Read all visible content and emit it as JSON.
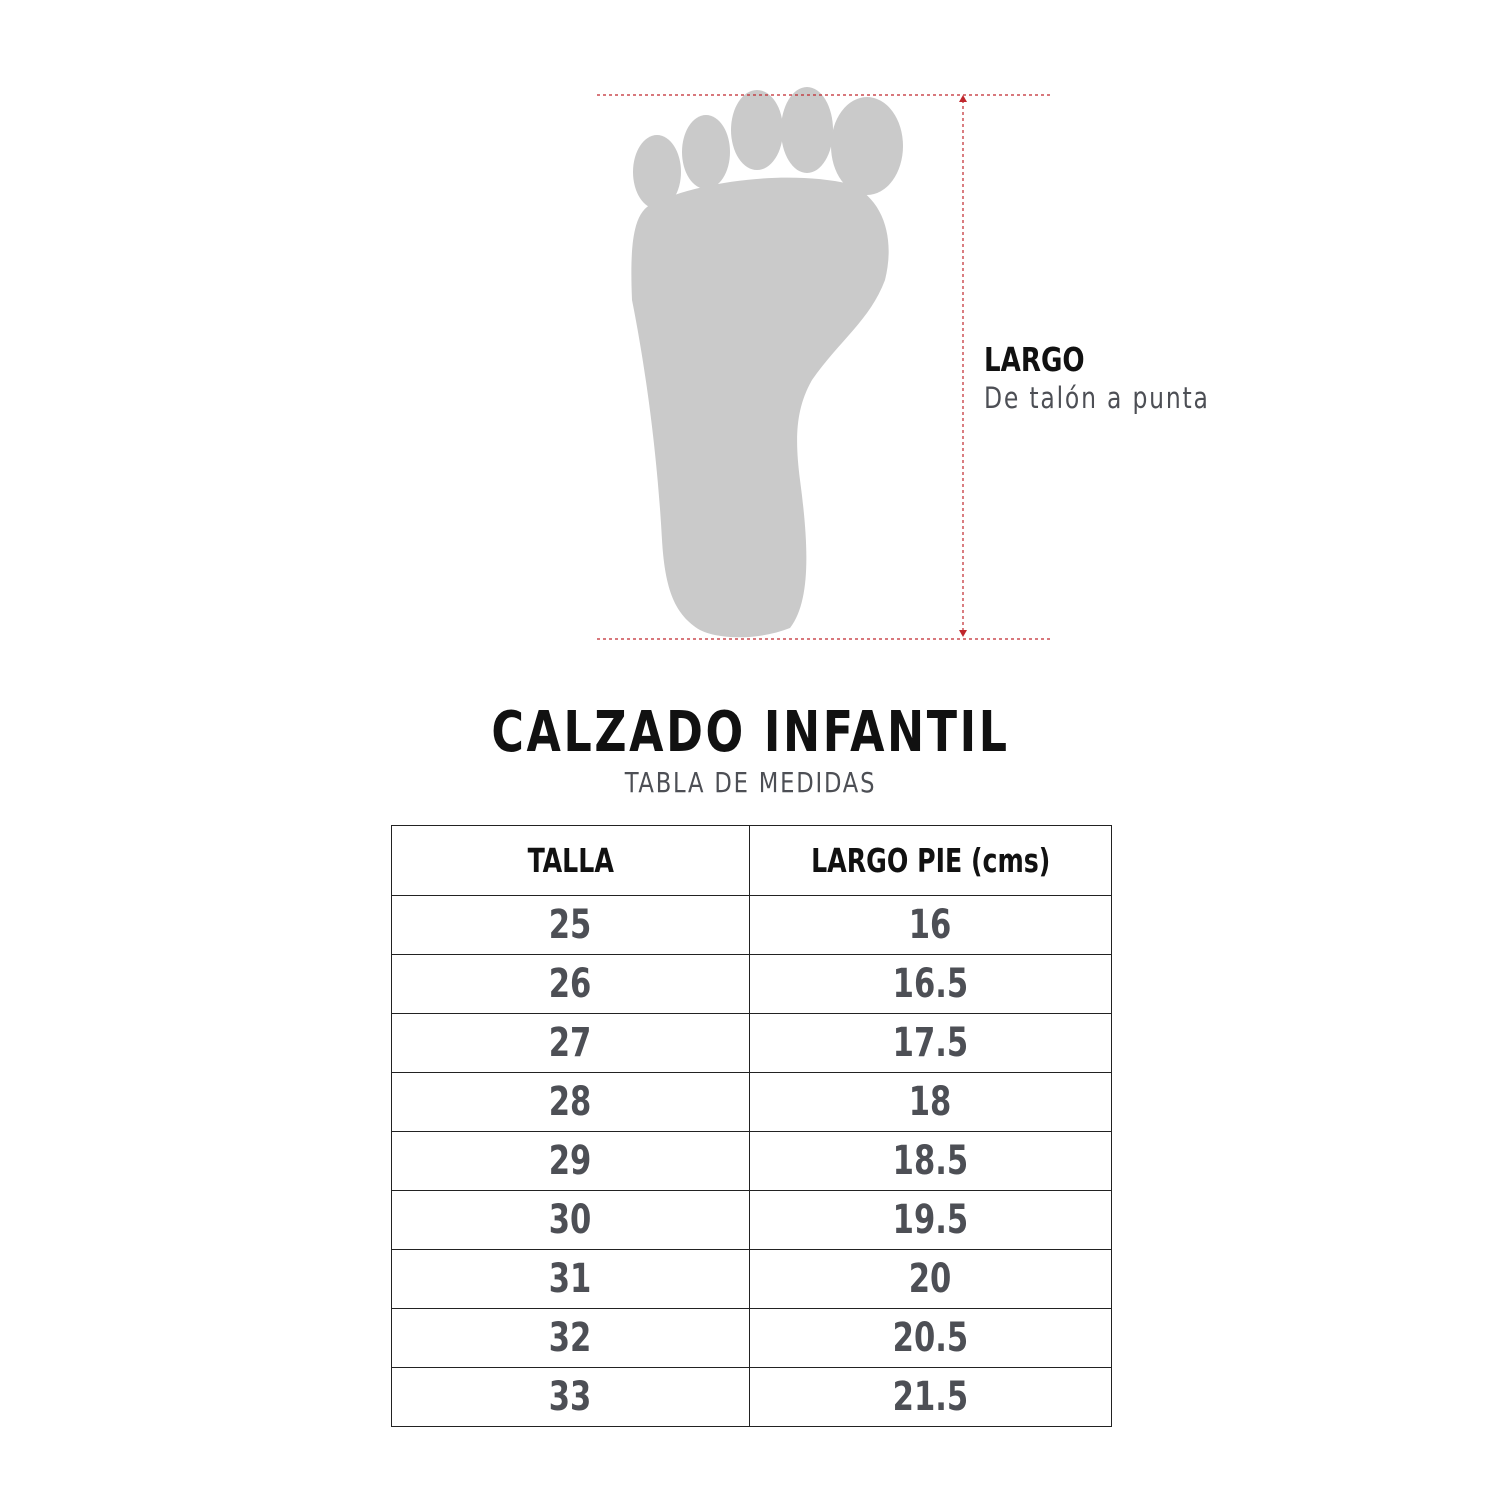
{
  "diagram": {
    "measure_label": "LARGO",
    "measure_description": "De talón a punta",
    "colors": {
      "foot": "#cacaca",
      "measure_line": "#c0272d"
    }
  },
  "header": {
    "title": "CALZADO INFANTIL",
    "subtitle": "TABLA DE MEDIDAS"
  },
  "table": {
    "columns": [
      "TALLA",
      "LARGO PIE (cms)"
    ],
    "rows": [
      [
        "25",
        "16"
      ],
      [
        "26",
        "16.5"
      ],
      [
        "27",
        "17.5"
      ],
      [
        "28",
        "18"
      ],
      [
        "29",
        "18.5"
      ],
      [
        "30",
        "19.5"
      ],
      [
        "31",
        "20"
      ],
      [
        "32",
        "20.5"
      ],
      [
        "33",
        "21.5"
      ]
    ]
  }
}
